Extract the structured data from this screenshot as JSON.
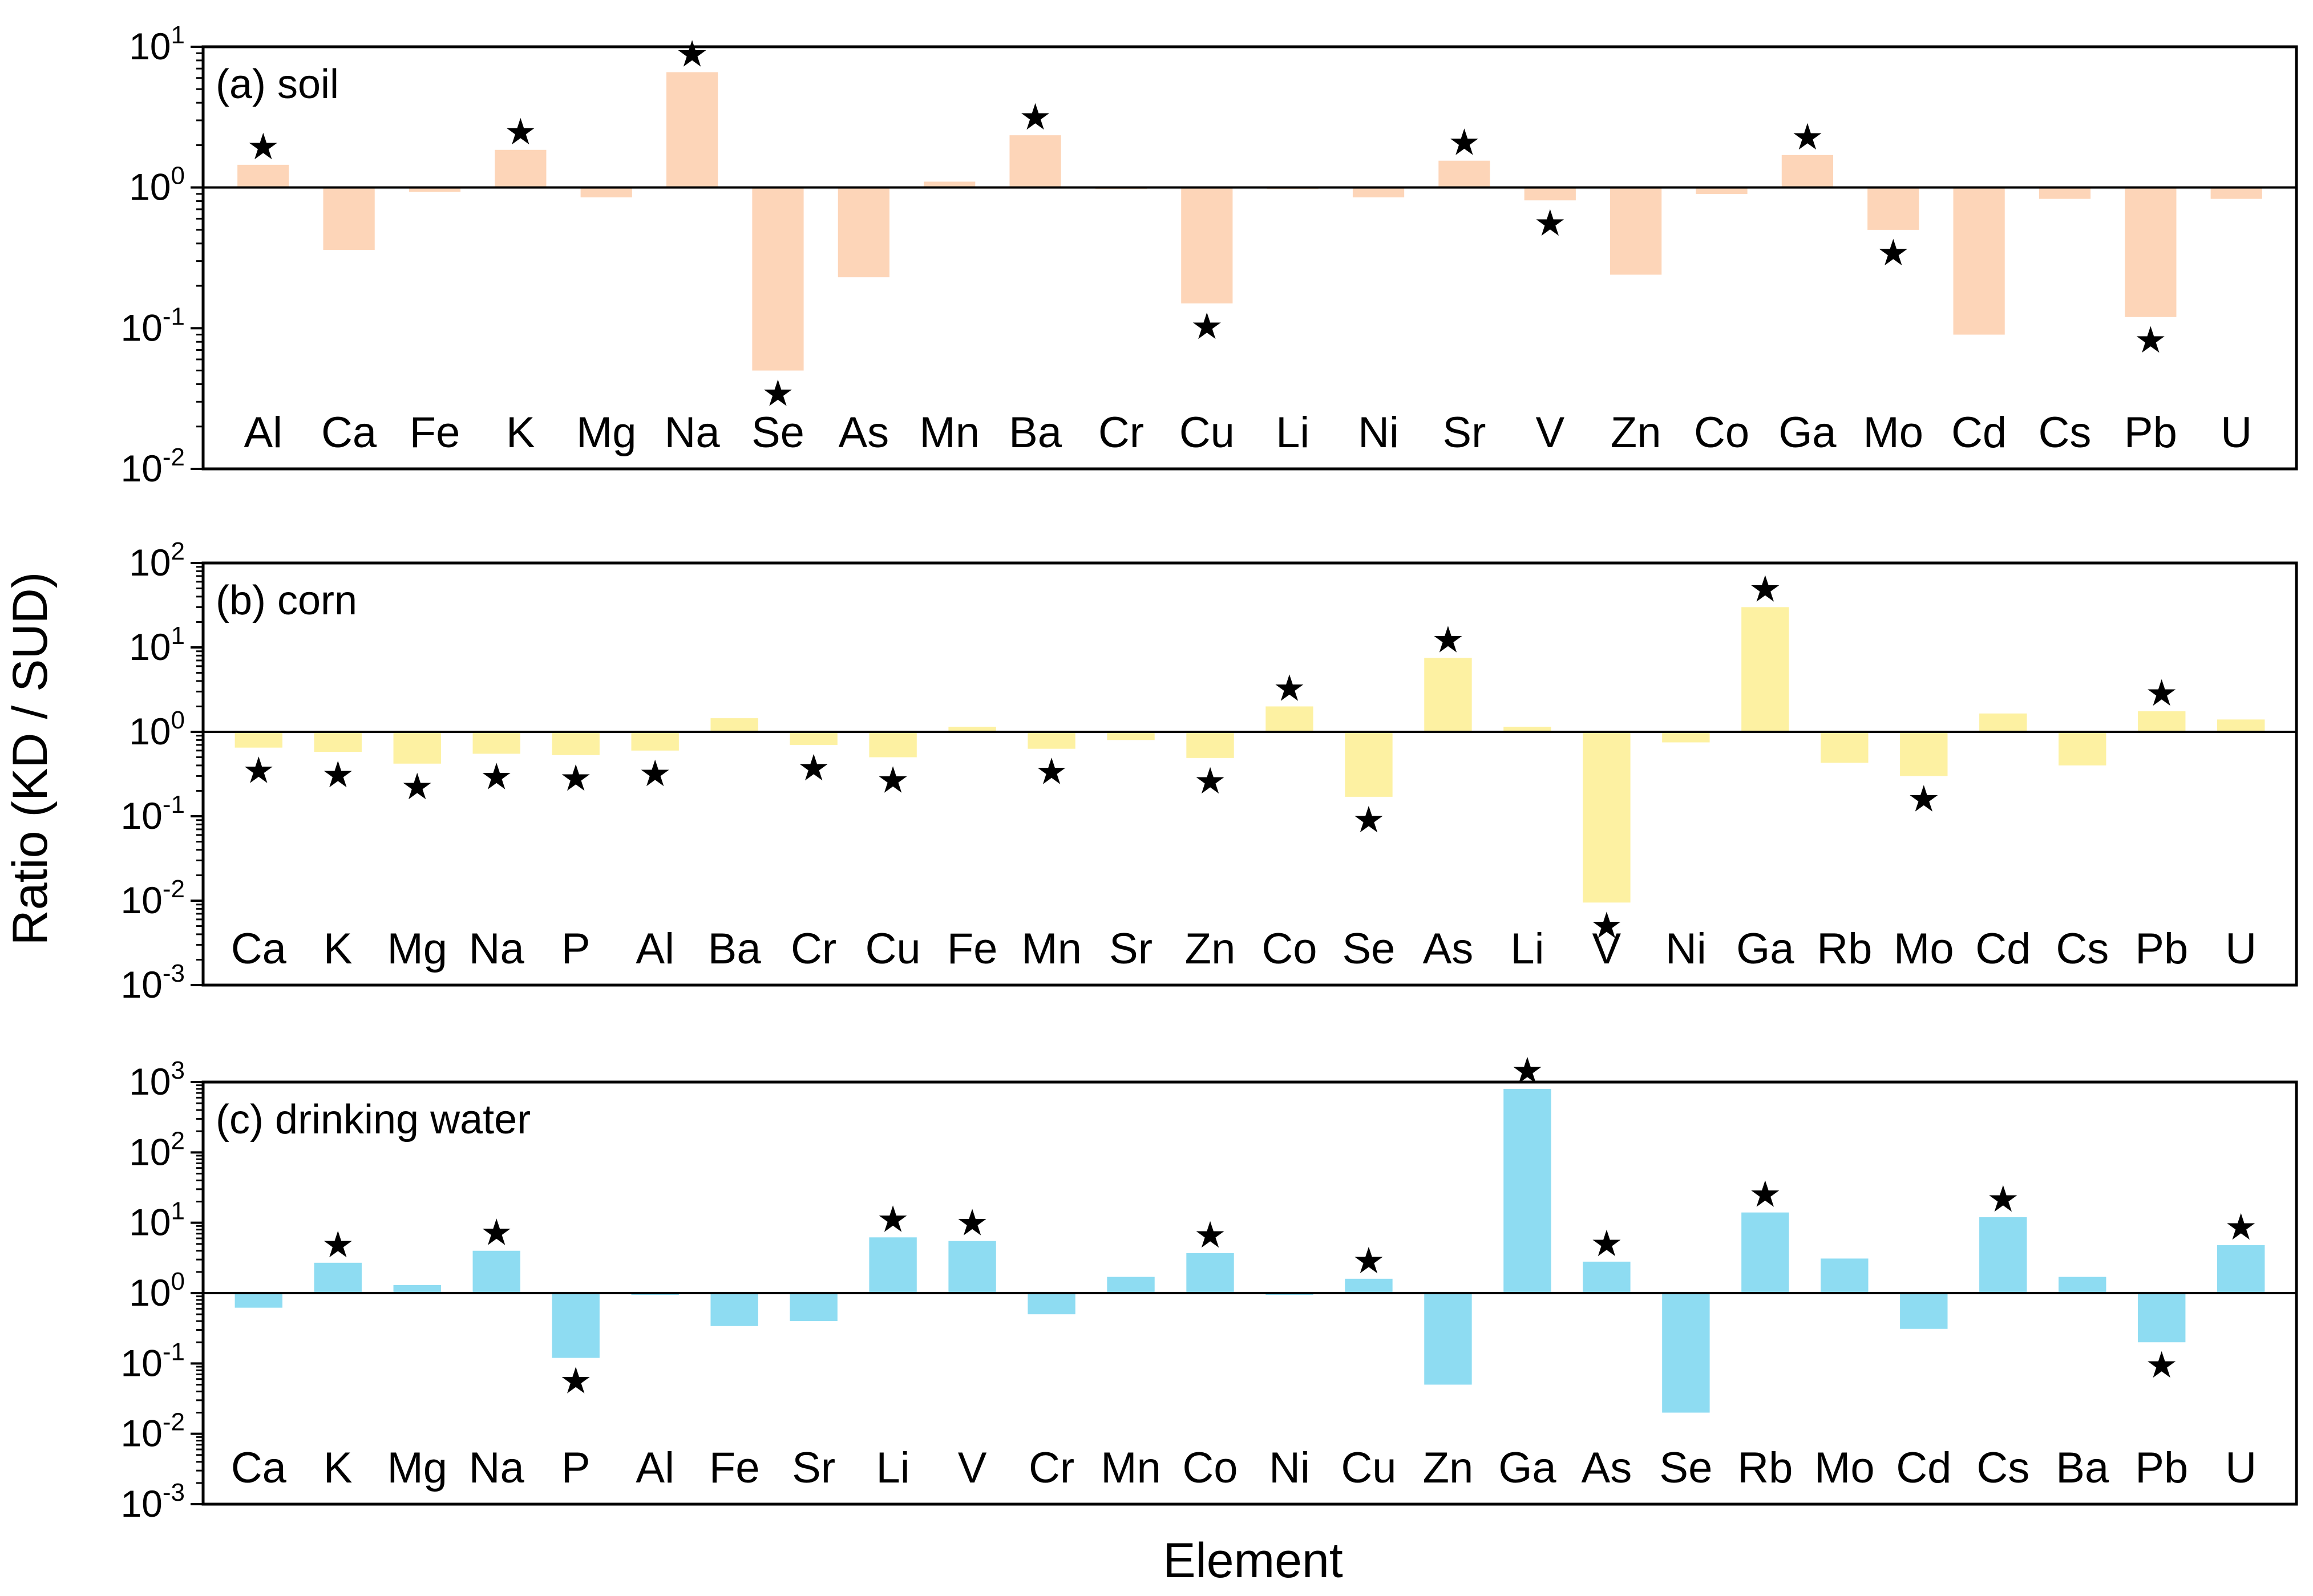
{
  "figure": {
    "ylabel": "Ratio (KD / SUD)",
    "xlabel": "Element"
  },
  "chart_data": [
    {
      "type": "bar",
      "title": "(a) soil",
      "color": "#fdd5b8",
      "yscale": "log",
      "ylim": [
        0.01,
        10
      ],
      "baseline": 1,
      "y_tick_labels": [
        {
          "base": "10",
          "exp": "-2"
        },
        {
          "base": "10",
          "exp": "-1"
        },
        {
          "base": "10",
          "exp": "0"
        },
        {
          "base": "10",
          "exp": "1"
        }
      ],
      "categories": [
        "Al",
        "Ca",
        "Fe",
        "K",
        "Mg",
        "Na",
        "Se",
        "As",
        "Mn",
        "Ba",
        "Cr",
        "Cu",
        "Li",
        "Ni",
        "Sr",
        "V",
        "Zn",
        "Co",
        "Ga",
        "Mo",
        "Cd",
        "Cs",
        "Pb",
        "U"
      ],
      "values": [
        1.45,
        0.36,
        0.93,
        1.85,
        0.85,
        6.6,
        0.05,
        0.23,
        1.1,
        2.35,
        1.0,
        0.15,
        1.0,
        0.85,
        1.55,
        0.81,
        0.24,
        0.9,
        1.7,
        0.5,
        0.09,
        0.83,
        0.12,
        0.83
      ],
      "significant": [
        "Al",
        "K",
        "Na",
        "Se",
        "Ba",
        "Cu",
        "Sr",
        "V",
        "Ga",
        "Mo",
        "Pb"
      ]
    },
    {
      "type": "bar",
      "title": "(b) corn",
      "color": "#fdf1a2",
      "yscale": "log",
      "ylim": [
        0.001,
        100
      ],
      "baseline": 1,
      "y_tick_labels": [
        {
          "base": "10",
          "exp": "-3"
        },
        {
          "base": "10",
          "exp": "-2"
        },
        {
          "base": "10",
          "exp": "-1"
        },
        {
          "base": "10",
          "exp": "0"
        },
        {
          "base": "10",
          "exp": "1"
        },
        {
          "base": "10",
          "exp": "2"
        }
      ],
      "categories": [
        "Ca",
        "K",
        "Mg",
        "Na",
        "P",
        "Al",
        "Ba",
        "Cr",
        "Cu",
        "Fe",
        "Mn",
        "Sr",
        "Zn",
        "Co",
        "Se",
        "As",
        "Li",
        "V",
        "Ni",
        "Ga",
        "Rb",
        "Mo",
        "Cd",
        "Cs",
        "Pb",
        "U"
      ],
      "values": [
        0.65,
        0.58,
        0.42,
        0.55,
        0.53,
        0.6,
        1.45,
        0.7,
        0.5,
        1.15,
        0.63,
        0.8,
        0.49,
        2.0,
        0.17,
        7.5,
        1.15,
        0.0095,
        0.75,
        30,
        0.43,
        0.3,
        1.65,
        0.4,
        1.75,
        1.4
      ],
      "significant": [
        "Ca",
        "K",
        "Mg",
        "Na",
        "P",
        "Al",
        "Cr",
        "Cu",
        "Mn",
        "Zn",
        "Co",
        "Se",
        "As",
        "V",
        "Ga",
        "Mo",
        "Pb"
      ]
    },
    {
      "type": "bar",
      "title": "(c) drinking water",
      "color": "#8edcf2",
      "yscale": "log",
      "ylim": [
        0.001,
        1000
      ],
      "baseline": 1,
      "y_tick_labels": [
        {
          "base": "10",
          "exp": "-3"
        },
        {
          "base": "10",
          "exp": "-2"
        },
        {
          "base": "10",
          "exp": "-1"
        },
        {
          "base": "10",
          "exp": "0"
        },
        {
          "base": "10",
          "exp": "1"
        },
        {
          "base": "10",
          "exp": "2"
        },
        {
          "base": "10",
          "exp": "3"
        }
      ],
      "categories": [
        "Ca",
        "K",
        "Mg",
        "Na",
        "P",
        "Al",
        "Fe",
        "Sr",
        "Li",
        "V",
        "Cr",
        "Mn",
        "Co",
        "Ni",
        "Cu",
        "Zn",
        "Ga",
        "As",
        "Se",
        "Rb",
        "Mo",
        "Cd",
        "Cs",
        "Ba",
        "Pb",
        "U"
      ],
      "values": [
        0.62,
        2.7,
        1.3,
        4.0,
        0.12,
        1.0,
        0.34,
        0.4,
        6.2,
        5.5,
        0.5,
        1.7,
        3.7,
        0.95,
        1.6,
        0.05,
        800,
        2.8,
        0.02,
        14,
        3.1,
        0.31,
        12,
        1.7,
        0.2,
        4.8
      ],
      "significant": [
        "K",
        "Na",
        "P",
        "Li",
        "V",
        "Co",
        "Cu",
        "Ga",
        "As",
        "Rb",
        "Cs",
        "Pb",
        "U"
      ]
    }
  ]
}
